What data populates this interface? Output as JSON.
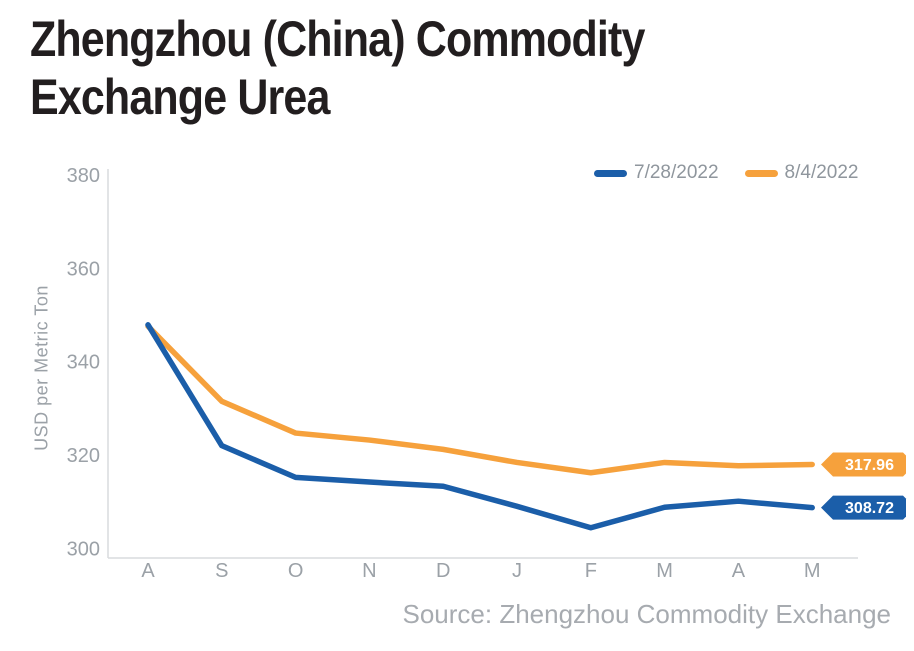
{
  "title": {
    "line1": "Zhengzhou (China) Commodity",
    "line2": "Exchange Urea"
  },
  "footer": {
    "source": "Source: Zhengzhou Commodity Exchange"
  },
  "colors": {
    "blue": "#1b5ea9",
    "orange": "#f6a13c",
    "axis_line": "#d9dbdd",
    "tick_text": "#9ba1a7",
    "title_text": "#221e1f"
  },
  "chart_data": {
    "type": "line",
    "title": "Zhengzhou (China) Commodity Exchange Urea",
    "xlabel": "",
    "ylabel": "USD per Metric Ton",
    "categories": [
      "A",
      "S",
      "O",
      "N",
      "D",
      "J",
      "F",
      "M",
      "A",
      "M"
    ],
    "y_ticks": [
      300,
      320,
      340,
      360,
      380
    ],
    "ylim": [
      300,
      380
    ],
    "grid": false,
    "legend_position": "top-right",
    "series": [
      {
        "name": "7/28/2022",
        "color": "#1b5ea9",
        "values": [
          347.9,
          322.0,
          315.2,
          314.2,
          313.3,
          309.0,
          304.4,
          308.8,
          310.1,
          308.72
        ],
        "end_label": "308.72"
      },
      {
        "name": "8/4/2022",
        "color": "#f6a13c",
        "values": [
          347.6,
          331.5,
          324.7,
          323.2,
          321.2,
          318.4,
          316.2,
          318.4,
          317.7,
          317.96
        ],
        "end_label": "317.96"
      }
    ]
  }
}
